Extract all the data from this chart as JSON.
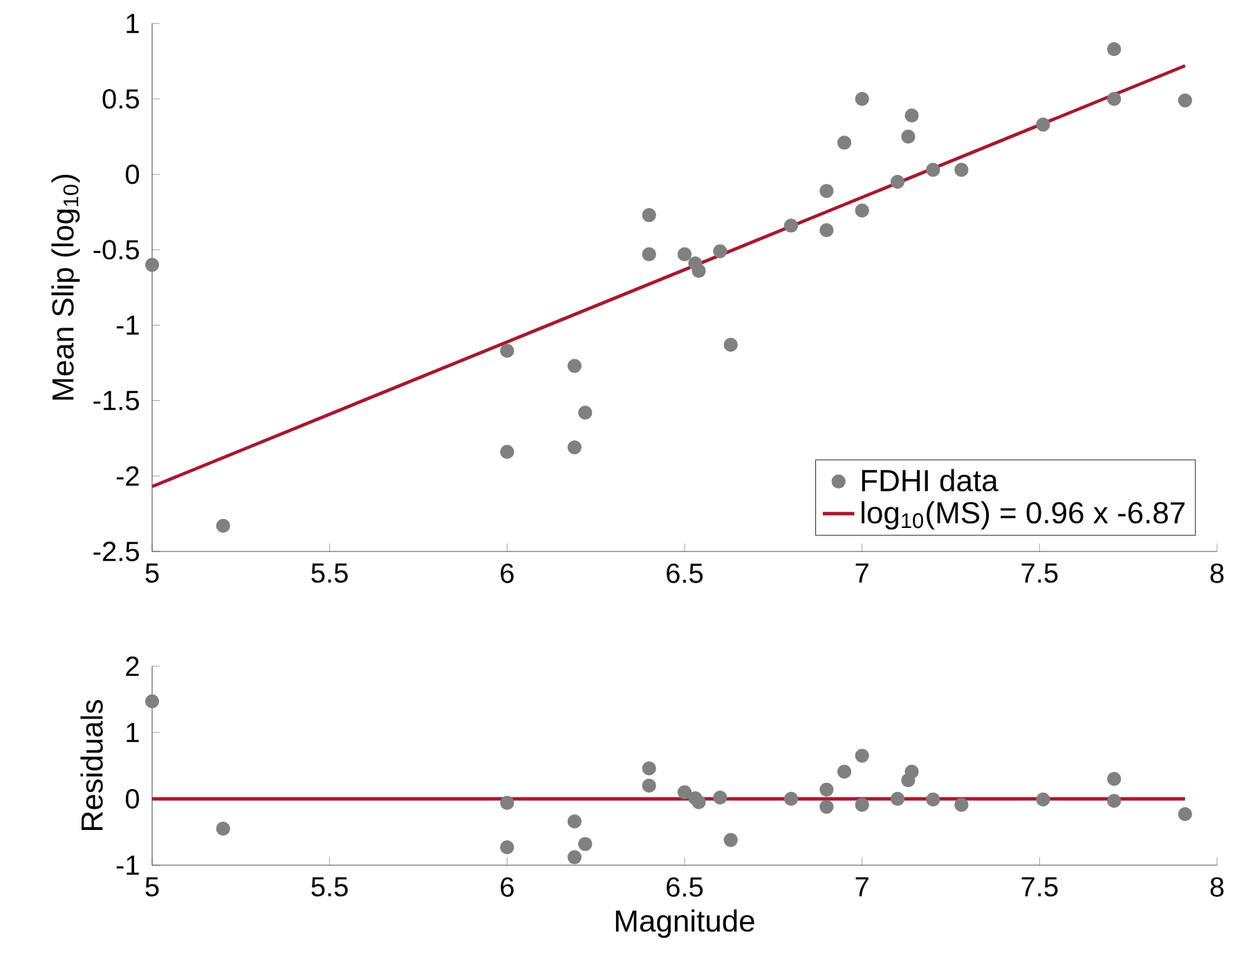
{
  "chart_data": [
    {
      "type": "scatter",
      "ylabel": "Mean Slip (log$_{10}$)",
      "xlim": [
        5,
        8
      ],
      "xticks": [
        5,
        5.5,
        6,
        6.5,
        7,
        7.5,
        8
      ],
      "ylim": [
        -2.5,
        1
      ],
      "yticks": [
        -2.5,
        -2,
        -1.5,
        -1,
        -0.5,
        0,
        0.5,
        1
      ],
      "legend": "bottom right",
      "series": [
        {
          "name": "FDHI data",
          "color": "#808080",
          "marker": "circle",
          "x": [
            5.0,
            5.2,
            6.0,
            6.0,
            6.19,
            6.19,
            6.22,
            6.4,
            6.4,
            6.5,
            6.53,
            6.54,
            6.6,
            6.63,
            6.8,
            6.9,
            6.9,
            6.95,
            7.0,
            7.0,
            7.1,
            7.13,
            7.14,
            7.2,
            7.28,
            7.51,
            7.71,
            7.71,
            7.91
          ],
          "values": [
            -0.6,
            -2.33,
            -1.17,
            -1.84,
            -1.27,
            -1.81,
            -1.58,
            -0.27,
            -0.53,
            -0.53,
            -0.59,
            -0.64,
            -0.51,
            -1.13,
            -0.34,
            -0.11,
            -0.37,
            0.21,
            0.5,
            -0.24,
            -0.05,
            0.25,
            0.39,
            0.03,
            0.03,
            0.33,
            0.83,
            0.5,
            0.49
          ]
        },
        {
          "type": "line",
          "name": "log$_{10}$(MS) = 0.96 x -6.87",
          "color": "#a6192e",
          "marker": "none",
          "x": [
            5,
            7.91
          ],
          "values": [
            -2.07,
            0.72
          ]
        }
      ]
    },
    {
      "type": "scatter",
      "xlabel": "Magnitude",
      "ylabel": "Residuals",
      "xlim": [
        5,
        8
      ],
      "xticks": [
        5,
        5.5,
        6,
        6.5,
        7,
        7.5,
        8
      ],
      "ylim": [
        -1,
        2
      ],
      "yticks": [
        -1,
        0,
        1,
        2
      ],
      "series": [
        {
          "color": "#808080",
          "marker": "circle",
          "x": [
            5.0,
            5.2,
            6.0,
            6.0,
            6.19,
            6.19,
            6.22,
            6.4,
            6.4,
            6.5,
            6.53,
            6.54,
            6.6,
            6.63,
            6.8,
            6.9,
            6.9,
            6.95,
            7.0,
            7.0,
            7.1,
            7.13,
            7.14,
            7.2,
            7.28,
            7.51,
            7.71,
            7.71,
            7.91
          ],
          "values": [
            1.47,
            -0.45,
            -0.06,
            -0.73,
            -0.34,
            -0.88,
            -0.68,
            0.46,
            0.2,
            0.1,
            0.01,
            -0.05,
            0.02,
            -0.62,
            0.0,
            0.14,
            -0.12,
            0.41,
            0.65,
            -0.09,
            0.0,
            0.28,
            0.41,
            -0.01,
            -0.09,
            -0.01,
            0.3,
            -0.03,
            -0.23
          ]
        },
        {
          "type": "line",
          "color": "#a6192e",
          "marker": "none",
          "x": [
            5,
            7.91
          ],
          "values": [
            0,
            0
          ]
        }
      ]
    }
  ]
}
